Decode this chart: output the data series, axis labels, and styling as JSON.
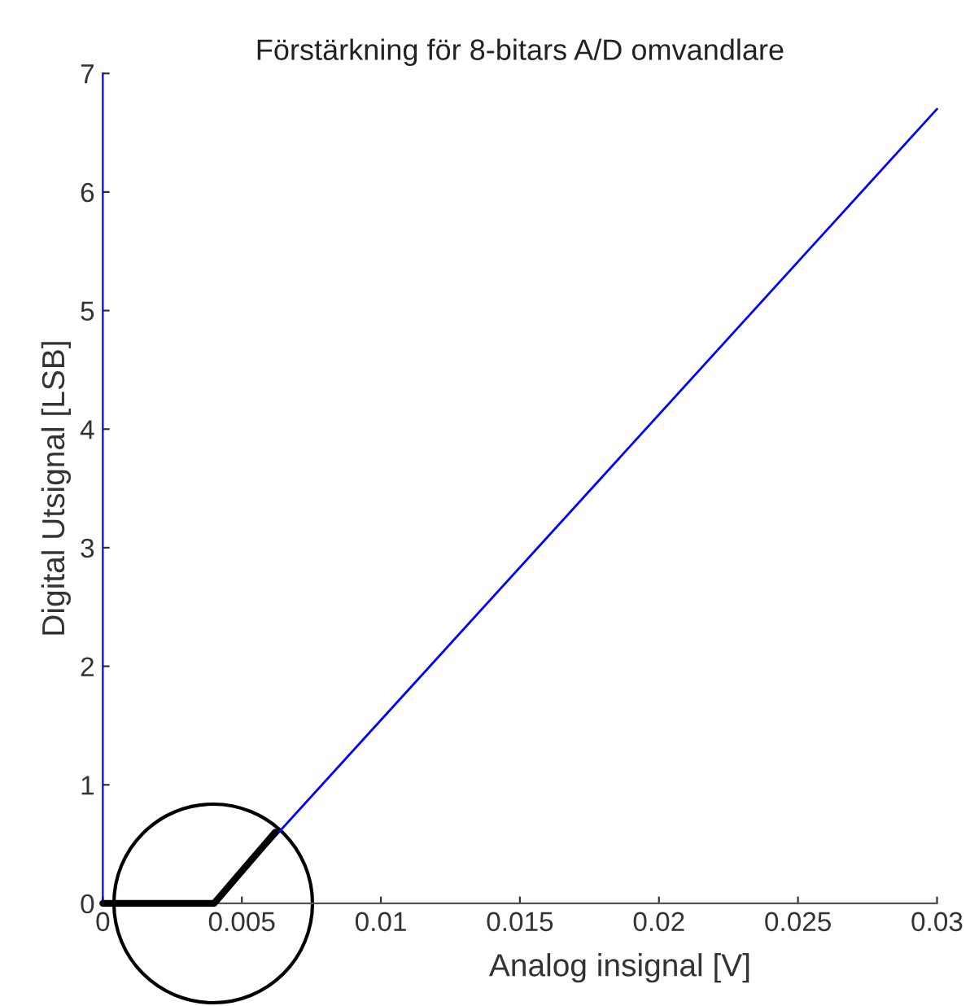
{
  "chart_data": {
    "type": "line",
    "title": "Förstärkning för 8-bitars A/D omvandlare",
    "xlabel": "Analog insignal [V]",
    "ylabel": "Digital Utsignal [LSB]",
    "series": [
      {
        "color": "#0000ff",
        "x": [
          0.004,
          0.03
        ],
        "values": [
          0,
          6.7
        ]
      },
      {
        "color": "#000000",
        "x": [
          0,
          0.004,
          0.0062
        ],
        "values": [
          0,
          0,
          0.6
        ]
      }
    ],
    "xlim": [
      0,
      0.03
    ],
    "ylim": [
      0,
      7
    ],
    "xticks": [
      0,
      0.005,
      0.01,
      0.015,
      0.02,
      0.025,
      0.03
    ],
    "yticks": [
      0,
      1,
      2,
      3,
      4,
      5,
      6,
      7
    ],
    "grid": false,
    "marker": "none",
    "line_style": "solid"
  }
}
